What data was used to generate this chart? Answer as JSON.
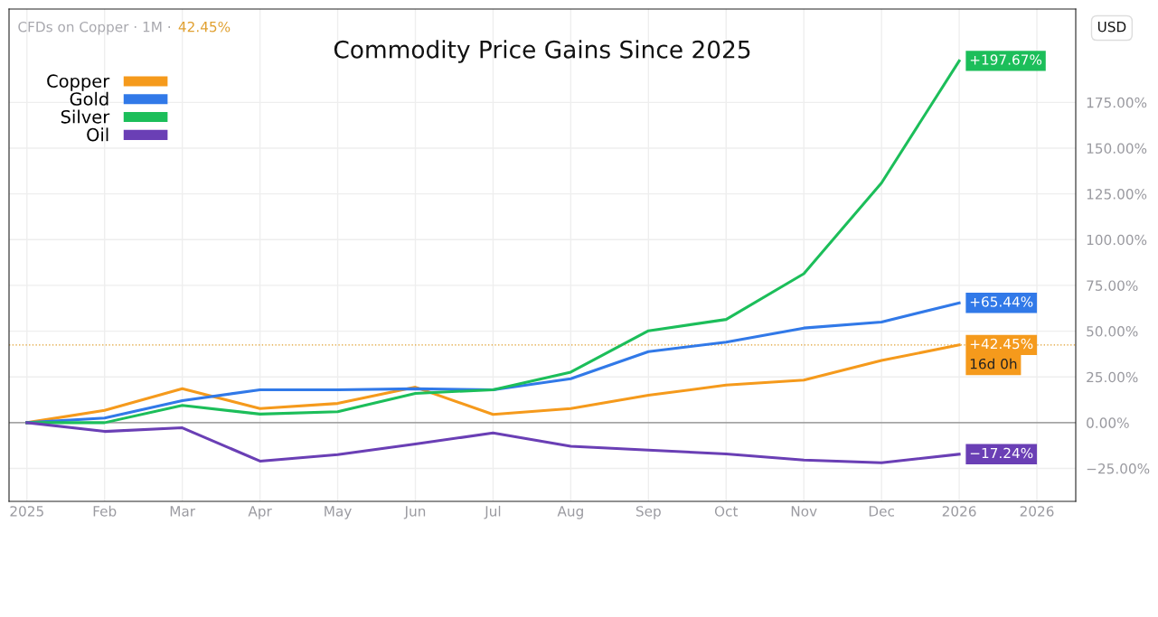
{
  "chart_data": {
    "type": "line",
    "title": "Commodity Price Gains Since 2025",
    "annotations": [
      "CFDs on Copper · 1M ·",
      "42.45%",
      "USD",
      {
        "text": "16d 0h",
        "x": "2026",
        "y": 42.45
      }
    ],
    "categories": [
      "2025",
      "Feb",
      "Mar",
      "Apr",
      "May",
      "Jun",
      "Jul",
      "Aug",
      "Sep",
      "Oct",
      "Nov",
      "Dec",
      "2026",
      "2026"
    ],
    "series": [
      {
        "name": "Copper",
        "color": "#f59a1c",
        "values": [
          0,
          6.7,
          18.6,
          7.7,
          10.5,
          19.4,
          4.5,
          7.7,
          15,
          20.5,
          23.3,
          34,
          42.45,
          null
        ],
        "value_labels": [
          null,
          null,
          null,
          null,
          null,
          null,
          null,
          null,
          null,
          null,
          null,
          null,
          "+42.45%",
          null
        ]
      },
      {
        "name": "Gold",
        "color": "#3179e8",
        "values": [
          0,
          2.5,
          12,
          18,
          18,
          18.5,
          18,
          24,
          38.8,
          44,
          51.7,
          55,
          65.44,
          null
        ],
        "value_labels": [
          null,
          null,
          null,
          null,
          null,
          null,
          null,
          null,
          null,
          null,
          null,
          null,
          "+65.44%",
          null
        ]
      },
      {
        "name": "Silver",
        "color": "#1cbe5a",
        "values": [
          0,
          0,
          9.4,
          4.7,
          6,
          16,
          18,
          27.6,
          50.2,
          56.4,
          81.4,
          131,
          197.67,
          null
        ],
        "value_labels": [
          null,
          null,
          null,
          null,
          null,
          null,
          null,
          null,
          null,
          null,
          null,
          null,
          "+197.67%",
          null
        ]
      },
      {
        "name": "Oil",
        "color": "#6a3fb5",
        "values": [
          0,
          -4.8,
          -2.8,
          -21,
          -17.5,
          -11.7,
          -5.6,
          -12.9,
          -15,
          -17.1,
          -20.4,
          -21.9,
          -17.24,
          null
        ],
        "value_labels": [
          null,
          null,
          null,
          null,
          null,
          null,
          null,
          null,
          null,
          null,
          null,
          null,
          "−17.24%",
          null
        ]
      }
    ],
    "ylim": [
      -43,
      226
    ],
    "yticks": [
      {
        "value": -25,
        "label": "−25.00%"
      },
      {
        "value": 0,
        "label": "0.00%"
      },
      {
        "value": 25,
        "label": "25.00%"
      },
      {
        "value": 50,
        "label": "50.00%"
      },
      {
        "value": 75,
        "label": "75.00%"
      },
      {
        "value": 100,
        "label": "100.00%"
      },
      {
        "value": 125,
        "label": "125.00%"
      },
      {
        "value": 150,
        "label": "150.00%"
      },
      {
        "value": 175,
        "label": "175.00%"
      }
    ],
    "ref_lines": [
      {
        "axis": "y",
        "value": 0,
        "color": "#888888",
        "line_style": "solid"
      },
      {
        "axis": "y",
        "value": 42.45,
        "color": "#e0a030",
        "line_style": "dotted"
      }
    ],
    "grid": true,
    "legend": "top left",
    "marker": "none",
    "line_style": "solid"
  }
}
